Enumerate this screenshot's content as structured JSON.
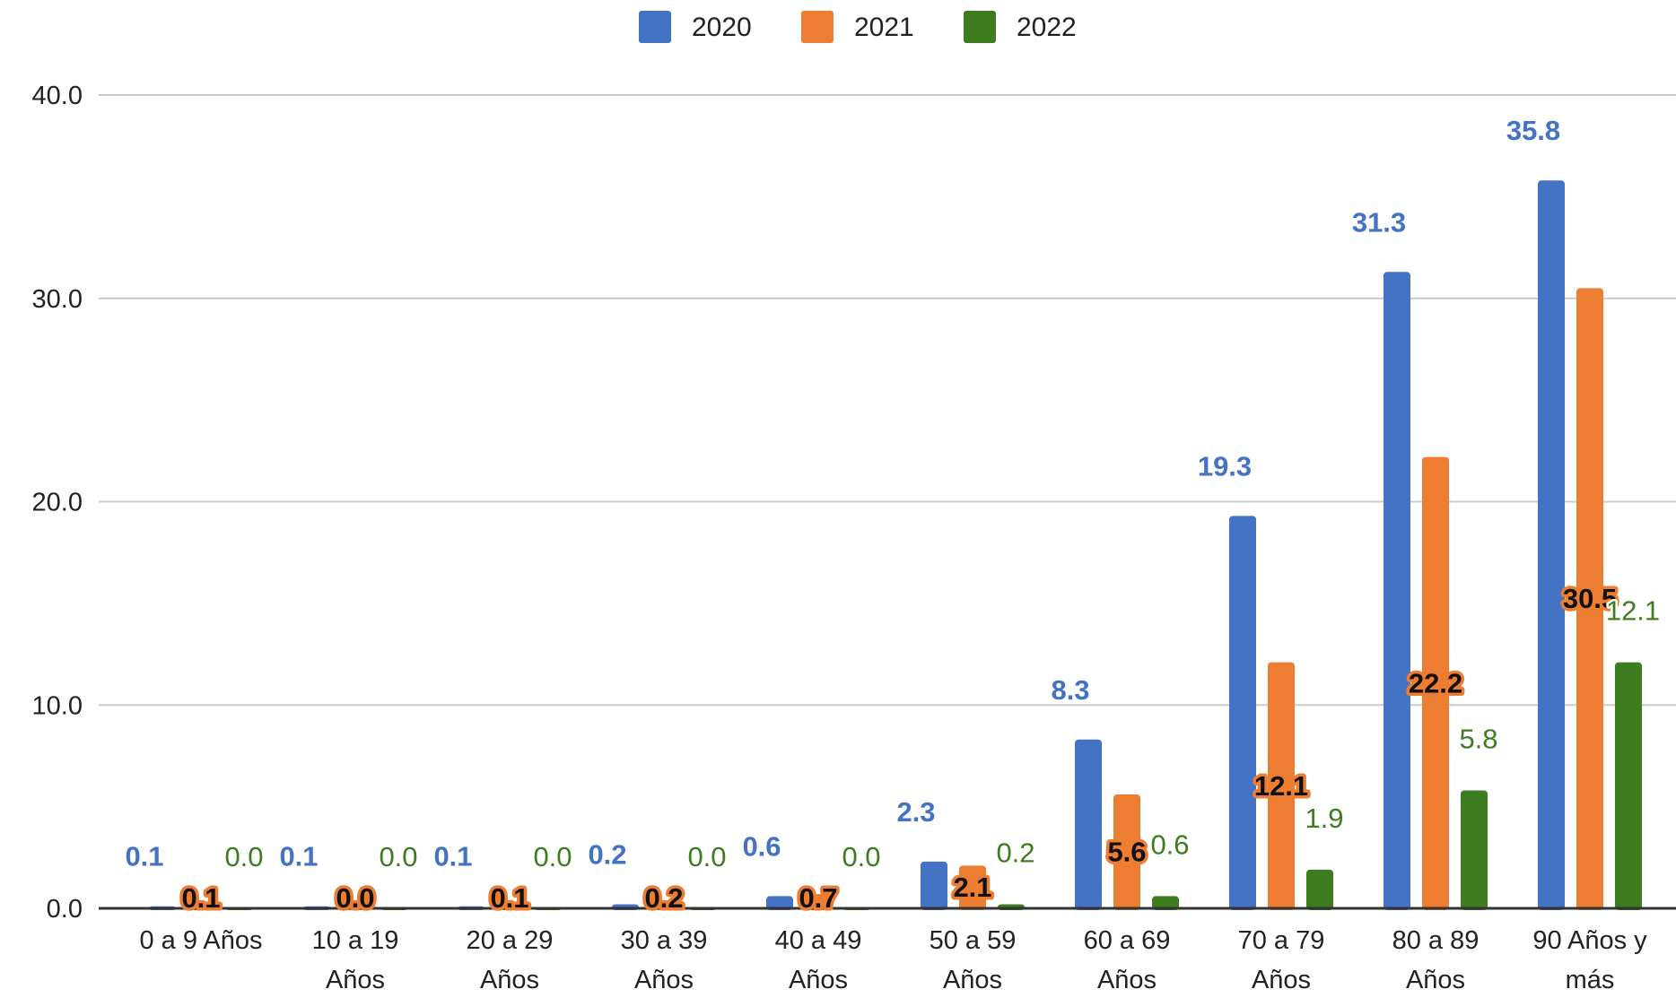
{
  "chart_data": {
    "type": "bar",
    "title": "",
    "xlabel": "",
    "ylabel": "",
    "ylim": [
      0,
      40
    ],
    "yticks": [
      "0.0",
      "10.0",
      "20.0",
      "30.0",
      "40.0"
    ],
    "ytick_values": [
      0,
      10,
      20,
      30,
      40
    ],
    "grid": true,
    "legend_position": "top-center",
    "categories": [
      [
        "0 a 9 Años"
      ],
      [
        "10 a 19",
        "Años"
      ],
      [
        "20 a 29",
        "Años"
      ],
      [
        "30 a 39",
        "Años"
      ],
      [
        "40 a 49",
        "Años"
      ],
      [
        "50 a 59",
        "Años"
      ],
      [
        "60 a 69",
        "Años"
      ],
      [
        "70 a 79",
        "Años"
      ],
      [
        "80 a 89",
        "Años"
      ],
      [
        "90 Años y",
        "más"
      ]
    ],
    "series": [
      {
        "name": "2020",
        "color": "#4472C4",
        "values": [
          0.1,
          0.1,
          0.1,
          0.2,
          0.6,
          2.3,
          8.3,
          19.3,
          31.3,
          35.8
        ],
        "labels": [
          "0.1",
          "0.1",
          "0.1",
          "0.2",
          "0.6",
          "2.3",
          "8.3",
          "19.3",
          "31.3",
          "35.8"
        ]
      },
      {
        "name": "2021",
        "color": "#ED7D31",
        "values": [
          0.1,
          0.0,
          0.1,
          0.2,
          0.7,
          2.1,
          5.6,
          12.1,
          22.2,
          30.5
        ],
        "labels": [
          "0.1",
          "0.0",
          "0.1",
          "0.2",
          "0.7",
          "2.1",
          "5.6",
          "12.1",
          "22.2",
          "30.5"
        ]
      },
      {
        "name": "2022",
        "color": "#3D7D1F",
        "values": [
          0.0,
          0.0,
          0.0,
          0.0,
          0.0,
          0.2,
          0.6,
          1.9,
          5.8,
          12.1
        ],
        "labels": [
          "0.0",
          "0.0",
          "0.0",
          "0.0",
          "0.0",
          "0.2",
          "0.6",
          "1.9",
          "5.8",
          "12.1"
        ]
      }
    ]
  }
}
